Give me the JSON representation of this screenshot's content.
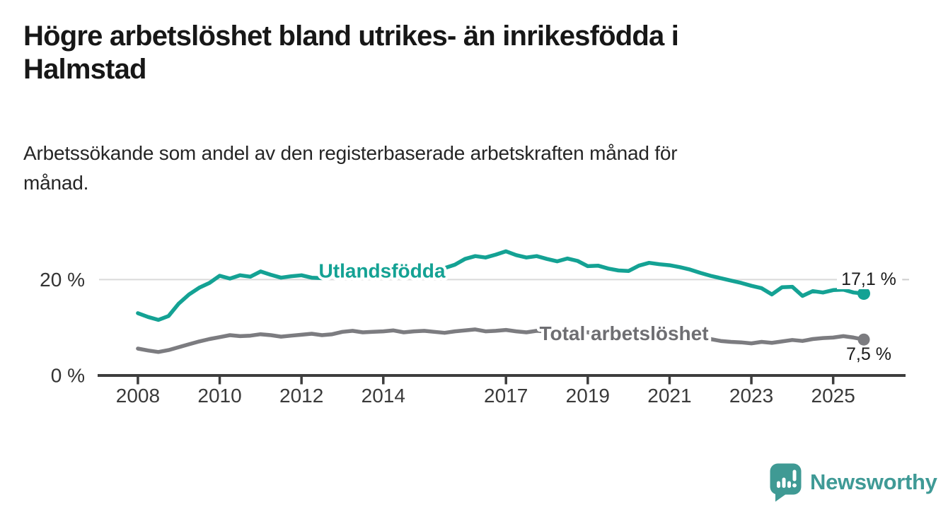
{
  "page": {
    "title_lines": [
      "Högre arbetslöshet bland utrikes- än inrikesfödda i",
      "Halmstad"
    ],
    "subtitle_lines": [
      "Arbetssökande som andel av den registerbaserade arbetskraften månad för",
      "månad."
    ]
  },
  "chart_data": {
    "type": "line",
    "title": "Högre arbetslöshet bland utrikes- än inrikesfödda i Halmstad",
    "subtitle": "Arbetssökande som andel av den registerbaserade arbetskraften månad för månad.",
    "unit": "%",
    "grid": "horizontal line at 20 % only",
    "legend": "inline labels on lines",
    "xlim": [
      2007.05,
      2026.77
    ],
    "ylim": [
      0,
      31
    ],
    "xticks": [
      {
        "value": 2008,
        "label": "2008"
      },
      {
        "value": 2010,
        "label": "2010"
      },
      {
        "value": 2012,
        "label": "2012"
      },
      {
        "value": 2014,
        "label": "2014"
      },
      {
        "value": 2017,
        "label": "2017"
      },
      {
        "value": 2019,
        "label": "2019"
      },
      {
        "value": 2021,
        "label": "2021"
      },
      {
        "value": 2023,
        "label": "2023"
      },
      {
        "value": 2025,
        "label": "2025"
      }
    ],
    "yticks": [
      {
        "value": 0,
        "label": "0 %"
      },
      {
        "value": 20,
        "label": "20 %"
      }
    ],
    "x": [
      2008,
      2008.25,
      2008.5,
      2008.75,
      2009,
      2009.25,
      2009.5,
      2009.75,
      2010,
      2010.25,
      2010.5,
      2010.75,
      2011,
      2011.25,
      2011.5,
      2011.75,
      2012,
      2012.25,
      2012.5,
      2012.75,
      2013,
      2013.25,
      2013.5,
      2013.75,
      2014,
      2014.25,
      2014.5,
      2014.75,
      2015,
      2015.25,
      2015.5,
      2015.75,
      2016,
      2016.25,
      2016.5,
      2016.75,
      2017,
      2017.25,
      2017.5,
      2017.75,
      2018,
      2018.25,
      2018.5,
      2018.75,
      2019,
      2019.25,
      2019.5,
      2019.75,
      2020,
      2020.25,
      2020.5,
      2020.75,
      2021,
      2021.25,
      2021.5,
      2021.75,
      2022,
      2022.25,
      2022.5,
      2022.75,
      2023,
      2023.25,
      2023.5,
      2023.75,
      2024,
      2024.25,
      2024.5,
      2024.75,
      2025,
      2025.25,
      2025.5,
      2025.75
    ],
    "series": [
      {
        "id": "utlandsfodda",
        "name": "Utlandsfödda",
        "color": "#14a294",
        "end_label": "17,1 %",
        "end_value": 17.1,
        "values": [
          13.0,
          12.2,
          11.6,
          12.4,
          15.0,
          16.9,
          18.3,
          19.3,
          20.8,
          20.2,
          20.9,
          20.6,
          21.7,
          21.0,
          20.4,
          20.7,
          20.9,
          20.4,
          20.3,
          20.9,
          20.6,
          21.0,
          21.5,
          21.0,
          21.3,
          20.8,
          21.2,
          21.4,
          21.2,
          21.7,
          22.4,
          23.1,
          24.3,
          24.9,
          24.6,
          25.2,
          25.9,
          25.1,
          24.6,
          24.9,
          24.3,
          23.8,
          24.4,
          23.9,
          22.8,
          22.9,
          22.3,
          21.9,
          21.8,
          22.9,
          23.5,
          23.2,
          23.0,
          22.6,
          22.1,
          21.4,
          20.8,
          20.3,
          19.8,
          19.3,
          18.7,
          18.2,
          16.9,
          18.4,
          18.5,
          16.6,
          17.6,
          17.3,
          17.8,
          17.9,
          17.3,
          17.1
        ]
      },
      {
        "id": "total-arbetsloshet",
        "name": "Total arbetslöshet",
        "color": "#7c7c80",
        "end_label": "7,5 %",
        "end_value": 7.5,
        "values": [
          5.6,
          5.2,
          4.9,
          5.3,
          5.9,
          6.5,
          7.1,
          7.6,
          8.0,
          8.4,
          8.2,
          8.3,
          8.6,
          8.4,
          8.1,
          8.3,
          8.5,
          8.7,
          8.4,
          8.6,
          9.1,
          9.3,
          9.0,
          9.1,
          9.2,
          9.4,
          9.0,
          9.2,
          9.3,
          9.1,
          8.9,
          9.2,
          9.4,
          9.6,
          9.2,
          9.3,
          9.5,
          9.2,
          9.0,
          9.3,
          9.2,
          9.0,
          8.8,
          9.1,
          9.0,
          8.8,
          8.6,
          8.8,
          8.9,
          9.3,
          9.5,
          9.3,
          9.1,
          8.8,
          8.4,
          8.0,
          7.6,
          7.2,
          7.0,
          6.9,
          6.7,
          7.0,
          6.8,
          7.1,
          7.4,
          7.2,
          7.6,
          7.8,
          7.9,
          8.2,
          7.9,
          7.5
        ]
      }
    ]
  },
  "branding": {
    "logo_text": "Newsworthy",
    "logo_color": "#3f9a96",
    "logo_icon": "speech-bubble-bar-chart-icon"
  }
}
